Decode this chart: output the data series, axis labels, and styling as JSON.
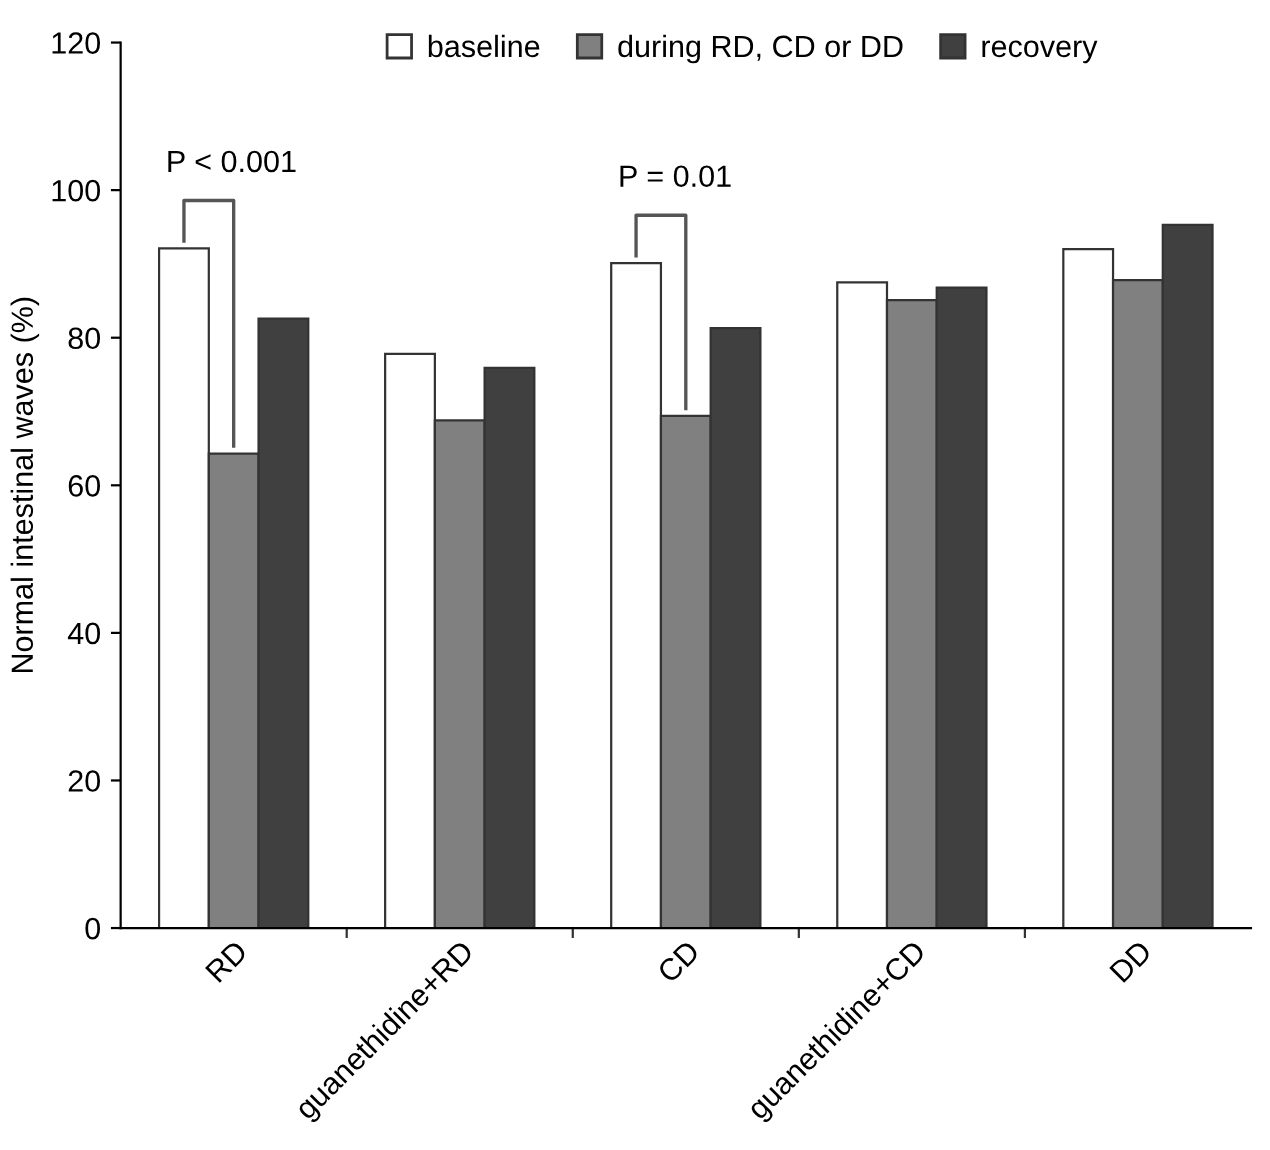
{
  "chart_data": {
    "type": "bar",
    "ylabel": "Normal intestinal waves (%)",
    "categories": [
      "RD",
      "guanethidine+RD",
      "CD",
      "guanethidine+CD",
      "DD"
    ],
    "series": [
      {
        "name": "baseline",
        "color": "#ffffff",
        "values": [
          92.1,
          77.8,
          90.1,
          87.5,
          92.0
        ]
      },
      {
        "name": "during RD, CD or DD",
        "color": "#808080",
        "values": [
          64.3,
          68.8,
          69.4,
          85.1,
          87.8
        ]
      },
      {
        "name": "recovery",
        "color": "#404040",
        "values": [
          82.6,
          75.9,
          81.3,
          86.8,
          95.3
        ]
      }
    ],
    "ylim": [
      0,
      120
    ],
    "yticks": [
      0,
      20,
      40,
      60,
      80,
      100,
      120
    ],
    "grid": false,
    "legend": "top",
    "annotations": [
      "P < 0.001",
      "P = 0.01"
    ]
  }
}
